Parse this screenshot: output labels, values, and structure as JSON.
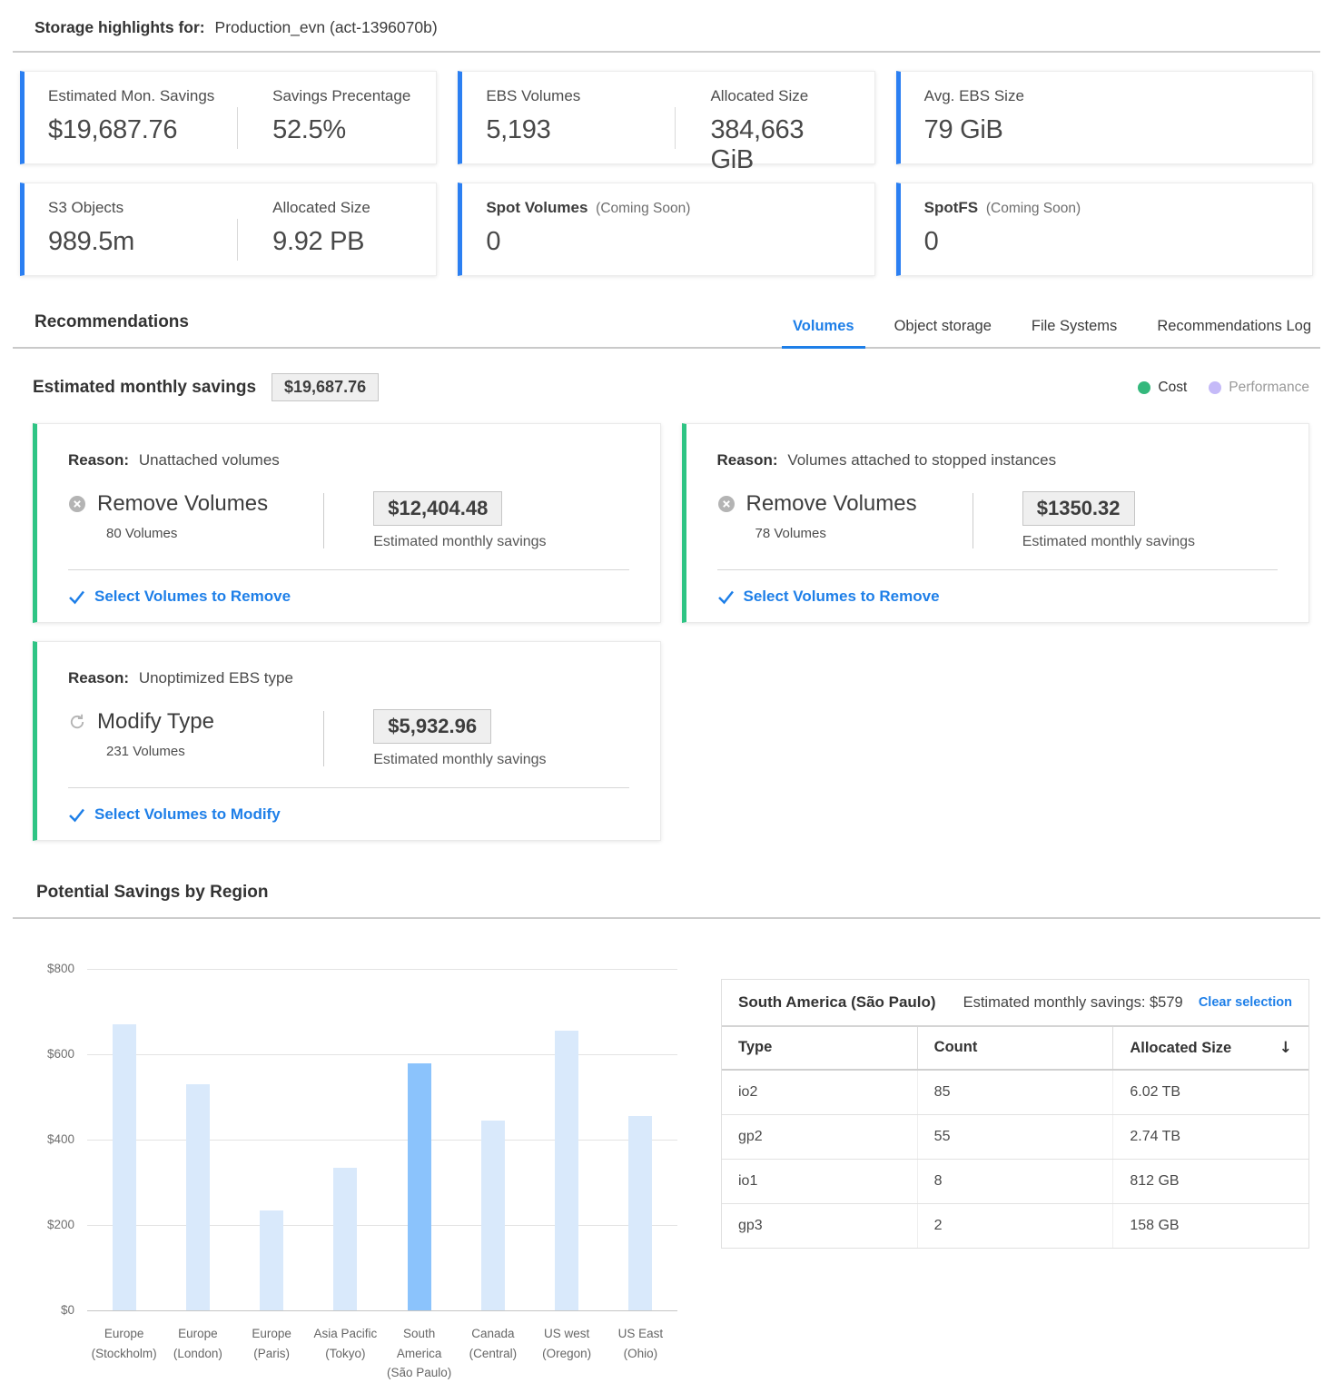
{
  "header": {
    "title_bold": "Storage highlights for:",
    "title_value": "Production_evn (act-1396070b)"
  },
  "stat_cards": [
    {
      "stats": [
        {
          "label": "Estimated Mon. Savings",
          "value": "$19,687.76"
        },
        {
          "label": "Savings Precentage",
          "value": "52.5%"
        }
      ]
    },
    {
      "stats": [
        {
          "label": "EBS Volumes",
          "value": "5,193"
        },
        {
          "label": "Allocated Size",
          "value": "384,663 GiB"
        }
      ]
    },
    {
      "stats": [
        {
          "label": "Avg. EBS Size",
          "value": "79 GiB"
        }
      ]
    },
    {
      "stats": [
        {
          "label": "S3 Objects",
          "value": "989.5m"
        },
        {
          "label": "Allocated Size",
          "value": "9.92 PB"
        }
      ]
    },
    {
      "stats": [
        {
          "name": "Spot Volumes",
          "suffix": "(Coming Soon)",
          "value": "0"
        }
      ]
    },
    {
      "stats": [
        {
          "name": "SpotFS",
          "suffix": "(Coming Soon)",
          "value": "0"
        }
      ]
    }
  ],
  "recommendations": {
    "title": "Recommendations",
    "tabs": [
      {
        "label": "Volumes",
        "active": true
      },
      {
        "label": "Object storage",
        "active": false
      },
      {
        "label": "File Systems",
        "active": false
      },
      {
        "label": "Recommendations Log",
        "active": false
      }
    ],
    "savings_label": "Estimated monthly savings",
    "savings_value": "$19,687.76",
    "legend": [
      {
        "label": "Cost",
        "color": "#34b87c"
      },
      {
        "label": "Performance",
        "color": "#c5baf8"
      }
    ],
    "cards": [
      {
        "reason_label": "Reason:",
        "reason": "Unattached volumes",
        "icon": "remove",
        "action": "Remove Volumes",
        "count": "80 Volumes",
        "amount": "$12,404.48",
        "amount_caption": "Estimated monthly savings",
        "cta": "Select Volumes to Remove"
      },
      {
        "reason_label": "Reason:",
        "reason": "Volumes attached to stopped instances",
        "icon": "remove",
        "action": "Remove Volumes",
        "count": "78 Volumes",
        "amount": "$1350.32",
        "amount_caption": "Estimated monthly savings",
        "cta": "Select Volumes to Remove"
      },
      {
        "reason_label": "Reason:",
        "reason": "Unoptimized EBS type",
        "icon": "modify",
        "action": "Modify Type",
        "count": "231 Volumes",
        "amount": "$5,932.96",
        "amount_caption": "Estimated monthly savings",
        "cta": "Select Volumes to Modify"
      }
    ]
  },
  "region_section": {
    "title": "Potential Savings by Region"
  },
  "chart_data": {
    "type": "bar",
    "title": "Potential Savings by Region",
    "categories": [
      "Europe (Stockholm)",
      "Europe (London)",
      "Europe (Paris)",
      "Asia Pacific (Tokyo)",
      "South America (São Paulo)",
      "Canada (Central)",
      "US west (Oregon)",
      "US East (Ohio)"
    ],
    "categories_lines": [
      [
        "Europe",
        "(Stockholm)"
      ],
      [
        "Europe",
        "(London)"
      ],
      [
        "Europe",
        "(Paris)"
      ],
      [
        "Asia Pacific",
        "(Tokyo)"
      ],
      [
        "South America",
        "(São Paulo)"
      ],
      [
        "Canada",
        "(Central)"
      ],
      [
        "US west",
        "(Oregon)"
      ],
      [
        "US East",
        "(Ohio)"
      ]
    ],
    "values": [
      670,
      530,
      235,
      335,
      579,
      445,
      655,
      455
    ],
    "selected_index": 4,
    "xlabel": "",
    "ylabel": "",
    "ylim": [
      0,
      800
    ],
    "yticks": [
      0,
      200,
      400,
      600,
      800
    ],
    "ytick_labels": [
      "$0",
      "$200",
      "$400",
      "$600",
      "$800"
    ],
    "grid": true,
    "legend_position": "none",
    "bar_color": "#d9e9fb",
    "selected_bar_color": "#8bc3fc"
  },
  "detail_table": {
    "region": "South America (São Paulo)",
    "subtitle": "Estimated monthly savings: $579",
    "clear_label": "Clear selection",
    "sort_icon": "↓",
    "columns": [
      "Type",
      "Count",
      "Allocated Size"
    ],
    "rows": [
      [
        "io2",
        "85",
        "6.02 TB"
      ],
      [
        "gp2",
        "55",
        "2.74 TB"
      ],
      [
        "io1",
        "8",
        "812 GB"
      ],
      [
        "gp3",
        "2",
        "158 GB"
      ]
    ]
  },
  "colors": {
    "accent_blue": "#2b7ff2",
    "link_blue": "#1e7fe8",
    "card_green": "#2ec484",
    "legend_green": "#34b87c",
    "legend_purple": "#c5baf8",
    "bar_light": "#d9e9fb",
    "bar_selected": "#8bc3fc"
  }
}
